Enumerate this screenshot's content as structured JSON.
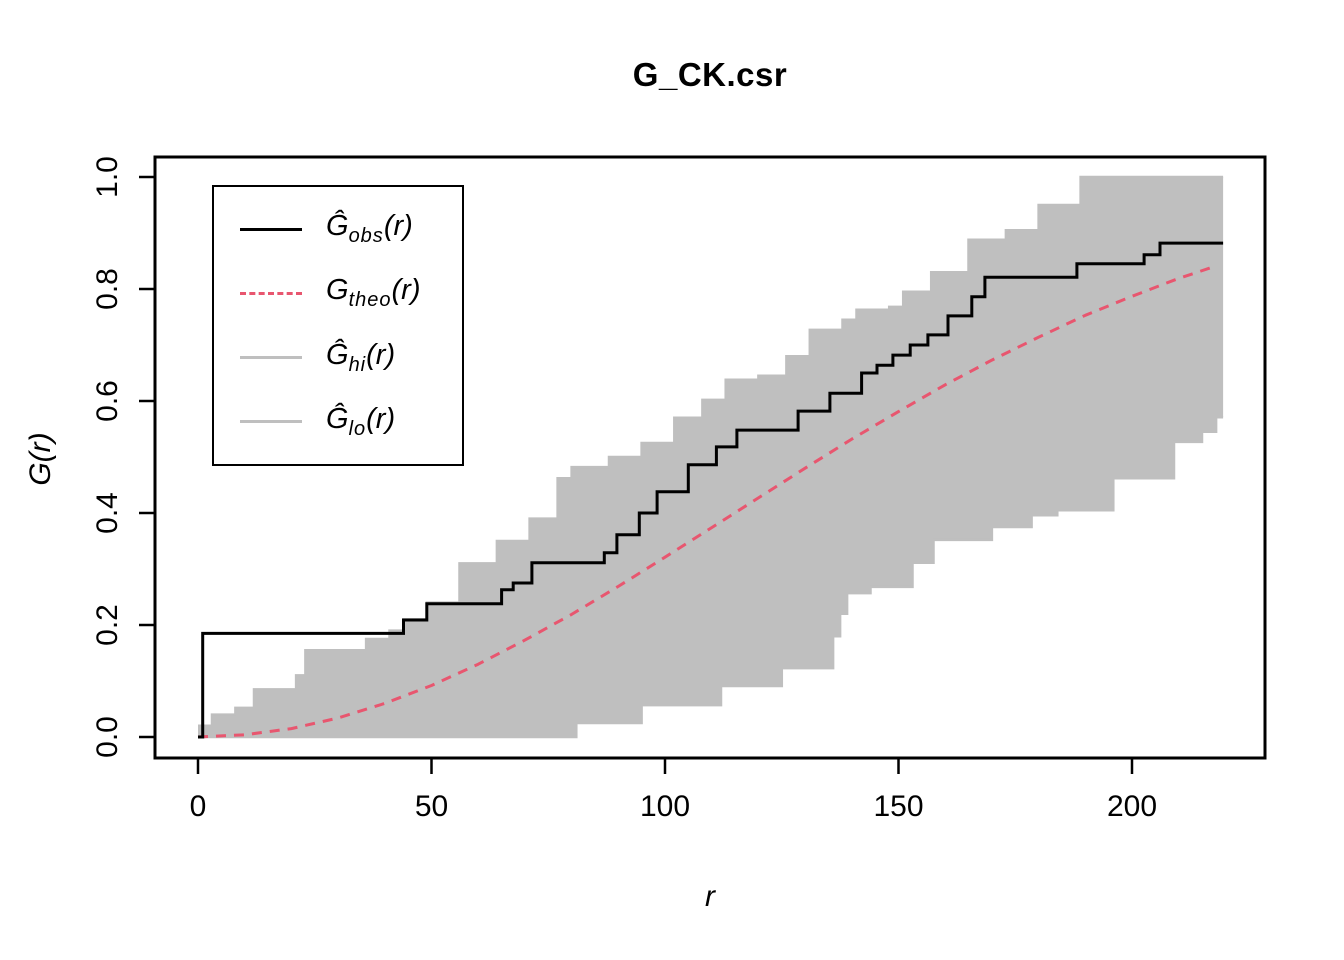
{
  "chart_data": {
    "type": "line",
    "title": "G_CK.csr",
    "xlabel": "r",
    "ylabel": "G(r)",
    "xlim": [
      0,
      220
    ],
    "ylim": [
      0,
      1
    ],
    "x_ticks": [
      "0",
      "50",
      "100",
      "150",
      "200"
    ],
    "y_ticks": [
      "0.0",
      "0.2",
      "0.4",
      "0.6",
      "0.8",
      "1.0"
    ],
    "grid": false,
    "legend_position": "top-left",
    "r_end": 219.5,
    "colors": {
      "obs": "#000000",
      "theo": "#e8566f",
      "envelope_fill": "#bfbfbf",
      "envelope_line": "#bfbfbf",
      "frame": "#000000",
      "background": "#ffffff"
    },
    "series": [
      {
        "name": "obs",
        "label": "G_obs(r)",
        "style": "step",
        "dash": false,
        "color": "#000000",
        "points": [
          [
            0,
            0
          ],
          [
            1,
            0.185
          ],
          [
            44,
            0.209
          ],
          [
            49,
            0.238
          ],
          [
            65,
            0.263
          ],
          [
            67.5,
            0.275
          ],
          [
            71.5,
            0.311
          ],
          [
            87,
            0.329
          ],
          [
            89.7,
            0.361
          ],
          [
            94.5,
            0.4
          ],
          [
            98.3,
            0.438
          ],
          [
            105,
            0.486
          ],
          [
            111,
            0.518
          ],
          [
            115.4,
            0.548
          ],
          [
            128.5,
            0.582
          ],
          [
            135.3,
            0.614
          ],
          [
            142.1,
            0.65
          ],
          [
            145.4,
            0.664
          ],
          [
            148.8,
            0.682
          ],
          [
            152.5,
            0.7
          ],
          [
            156.3,
            0.718
          ],
          [
            160.6,
            0.752
          ],
          [
            165.7,
            0.786
          ],
          [
            168.5,
            0.821
          ],
          [
            188.2,
            0.845
          ],
          [
            202.6,
            0.861
          ],
          [
            206,
            0.882
          ]
        ]
      },
      {
        "name": "theo",
        "label": "G_theo(r)",
        "style": "line",
        "dash": true,
        "color": "#e8566f",
        "points": [
          [
            0,
            0
          ],
          [
            10,
            0.004
          ],
          [
            20,
            0.015
          ],
          [
            30,
            0.034
          ],
          [
            40,
            0.06
          ],
          [
            50,
            0.092
          ],
          [
            60,
            0.13
          ],
          [
            70,
            0.173
          ],
          [
            80,
            0.219
          ],
          [
            90,
            0.269
          ],
          [
            100,
            0.321
          ],
          [
            110,
            0.374
          ],
          [
            120,
            0.427
          ],
          [
            130,
            0.48
          ],
          [
            140,
            0.532
          ],
          [
            150,
            0.581
          ],
          [
            160,
            0.629
          ],
          [
            170,
            0.673
          ],
          [
            180,
            0.714
          ],
          [
            190,
            0.753
          ],
          [
            200,
            0.787
          ],
          [
            210,
            0.819
          ],
          [
            218,
            0.841
          ]
        ]
      },
      {
        "name": "hi",
        "label": "G_hi(r)",
        "style": "step",
        "dash": false,
        "color": "#bfbfbf",
        "points": [
          [
            0,
            0.02
          ],
          [
            3,
            0.04
          ],
          [
            8,
            0.052
          ],
          [
            12,
            0.085
          ],
          [
            21,
            0.11
          ],
          [
            23,
            0.155
          ],
          [
            36,
            0.175
          ],
          [
            41,
            0.19
          ],
          [
            44,
            0.21
          ],
          [
            49,
            0.24
          ],
          [
            56,
            0.31
          ],
          [
            64,
            0.35
          ],
          [
            71,
            0.39
          ],
          [
            77,
            0.462
          ],
          [
            80,
            0.482
          ],
          [
            88,
            0.5
          ],
          [
            95,
            0.525
          ],
          [
            102,
            0.57
          ],
          [
            108,
            0.602
          ],
          [
            113,
            0.638
          ],
          [
            120,
            0.645
          ],
          [
            126,
            0.68
          ],
          [
            131,
            0.727
          ],
          [
            138,
            0.745
          ],
          [
            141,
            0.763
          ],
          [
            148,
            0.768
          ],
          [
            151,
            0.795
          ],
          [
            157,
            0.83
          ],
          [
            165,
            0.888
          ],
          [
            173,
            0.905
          ],
          [
            180,
            0.95
          ],
          [
            189,
            1.0
          ]
        ]
      },
      {
        "name": "lo",
        "label": "G_lo(r)",
        "style": "step",
        "dash": false,
        "color": "#bfbfbf",
        "points": [
          [
            0,
            0
          ],
          [
            81,
            0.025
          ],
          [
            95,
            0.057
          ],
          [
            112,
            0.091
          ],
          [
            125,
            0.123
          ],
          [
            136,
            0.18
          ],
          [
            137.5,
            0.22
          ],
          [
            139,
            0.257
          ],
          [
            144,
            0.268
          ],
          [
            153,
            0.311
          ],
          [
            157.5,
            0.352
          ],
          [
            170,
            0.375
          ],
          [
            178.5,
            0.396
          ],
          [
            184,
            0.405
          ],
          [
            196,
            0.462
          ],
          [
            209,
            0.527
          ],
          [
            215,
            0.545
          ],
          [
            218,
            0.571
          ]
        ]
      }
    ]
  },
  "legend": {
    "items": [
      {
        "base": "Ĝ",
        "sub": "obs",
        "arg": "(r)",
        "color": "#000000",
        "dash": false
      },
      {
        "base": "G",
        "sub": "theo",
        "arg": "(r)",
        "color": "#e8566f",
        "dash": true
      },
      {
        "base": "Ĝ",
        "sub": "hi",
        "arg": "(r)",
        "color": "#bfbfbf",
        "dash": false
      },
      {
        "base": "Ĝ",
        "sub": "lo",
        "arg": "(r)",
        "color": "#bfbfbf",
        "dash": false
      }
    ]
  }
}
